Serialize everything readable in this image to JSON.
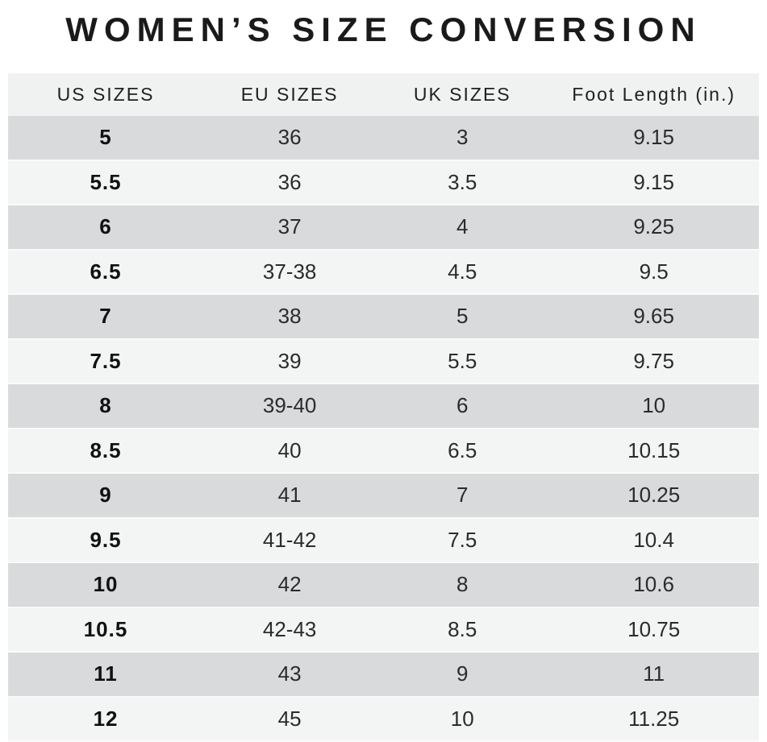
{
  "title": "WOMEN’S SIZE CONVERSION",
  "colors": {
    "page_bg": "#ffffff",
    "header_bg": "#f0f1f1",
    "row_dark": "#d8dadb",
    "row_light": "#f3f4f4",
    "title_text": "#1a1a1a",
    "body_text": "#2b2b2b"
  },
  "chart_data": {
    "type": "table",
    "title": "WOMEN’S SIZE CONVERSION",
    "columns": [
      "US SIZES",
      "EU SIZES",
      "UK SIZES",
      "Foot Length (in.)"
    ],
    "rows": [
      [
        "5",
        "36",
        "3",
        "9.15"
      ],
      [
        "5.5",
        "36",
        "3.5",
        "9.15"
      ],
      [
        "6",
        "37",
        "4",
        "9.25"
      ],
      [
        "6.5",
        "37-38",
        "4.5",
        "9.5"
      ],
      [
        "7",
        "38",
        "5",
        "9.65"
      ],
      [
        "7.5",
        "39",
        "5.5",
        "9.75"
      ],
      [
        "8",
        "39-40",
        "6",
        "10"
      ],
      [
        "8.5",
        "40",
        "6.5",
        "10.15"
      ],
      [
        "9",
        "41",
        "7",
        "10.25"
      ],
      [
        "9.5",
        "41-42",
        "7.5",
        "10.4"
      ],
      [
        "10",
        "42",
        "8",
        "10.6"
      ],
      [
        "10.5",
        "42-43",
        "8.5",
        "10.75"
      ],
      [
        "11",
        "43",
        "9",
        "11"
      ],
      [
        "12",
        "45",
        "10",
        "11.25"
      ]
    ],
    "layout": {
      "header_row": true,
      "alternating_row_shading": "first data row dark, alternating dark/light",
      "first_column_bold": true
    }
  }
}
